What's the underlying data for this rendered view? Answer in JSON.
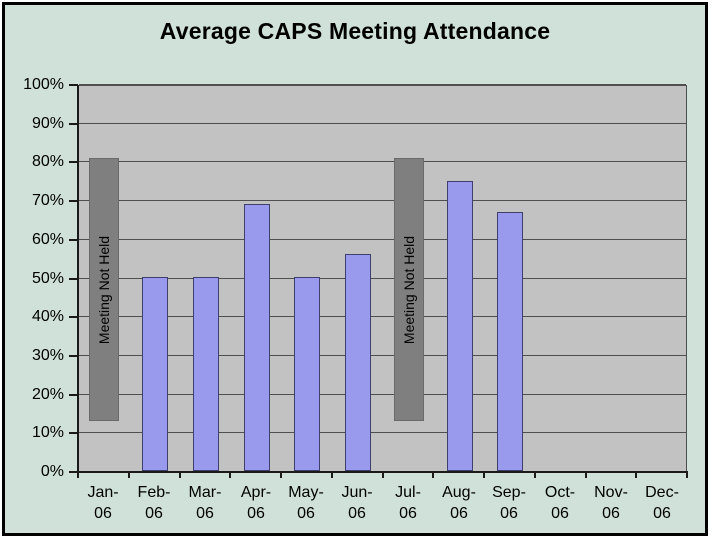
{
  "chart_data": {
    "type": "bar",
    "title": "Average CAPS Meeting Attendance",
    "categories": [
      "Jan-06",
      "Feb-06",
      "Mar-06",
      "Apr-06",
      "May-06",
      "Jun-06",
      "Jul-06",
      "Aug-06",
      "Sep-06",
      "Oct-06",
      "Nov-06",
      "Dec-06"
    ],
    "x_tick_labels": [
      [
        "Jan-",
        "06"
      ],
      [
        "Feb-",
        "06"
      ],
      [
        "Mar-",
        "06"
      ],
      [
        "Apr-",
        "06"
      ],
      [
        "May-",
        "06"
      ],
      [
        "Jun-",
        "06"
      ],
      [
        "Jul-",
        "06"
      ],
      [
        "Aug-",
        "06"
      ],
      [
        "Sep-",
        "06"
      ],
      [
        "Oct-",
        "06"
      ],
      [
        "Nov-",
        "06"
      ],
      [
        "Dec-",
        "06"
      ]
    ],
    "values_percent": [
      null,
      50,
      50,
      69,
      50,
      56,
      null,
      75,
      67,
      null,
      null,
      null
    ],
    "meeting_not_held": [
      true,
      false,
      false,
      false,
      false,
      false,
      true,
      false,
      false,
      false,
      false,
      false
    ],
    "not_held_label": "Meeting Not Held",
    "not_held_bar_span_percent": {
      "from": 13,
      "to": 81
    },
    "ytick_values": [
      0,
      10,
      20,
      30,
      40,
      50,
      60,
      70,
      80,
      90,
      100
    ],
    "ytick_labels": [
      "0%",
      "10%",
      "20%",
      "30%",
      "40%",
      "50%",
      "60%",
      "70%",
      "80%",
      "90%",
      "100%"
    ],
    "ylim": [
      0,
      100
    ],
    "xlabel": "",
    "ylabel": "",
    "grid": true,
    "legend_position": "none"
  },
  "colors": {
    "page_background": "#ffffff",
    "chart_background": "#cfe1d9",
    "plot_background": "#c2c2c2",
    "bar_fill": "#9999ee",
    "bar_border": "#3f3f6e",
    "not_held_fill": "#7f7f7f",
    "not_held_border": "#6a6a6a",
    "gridline": "#4f4f4f",
    "axis": "#1a1a1a",
    "text": "#000000",
    "frame_border": "#000000"
  }
}
